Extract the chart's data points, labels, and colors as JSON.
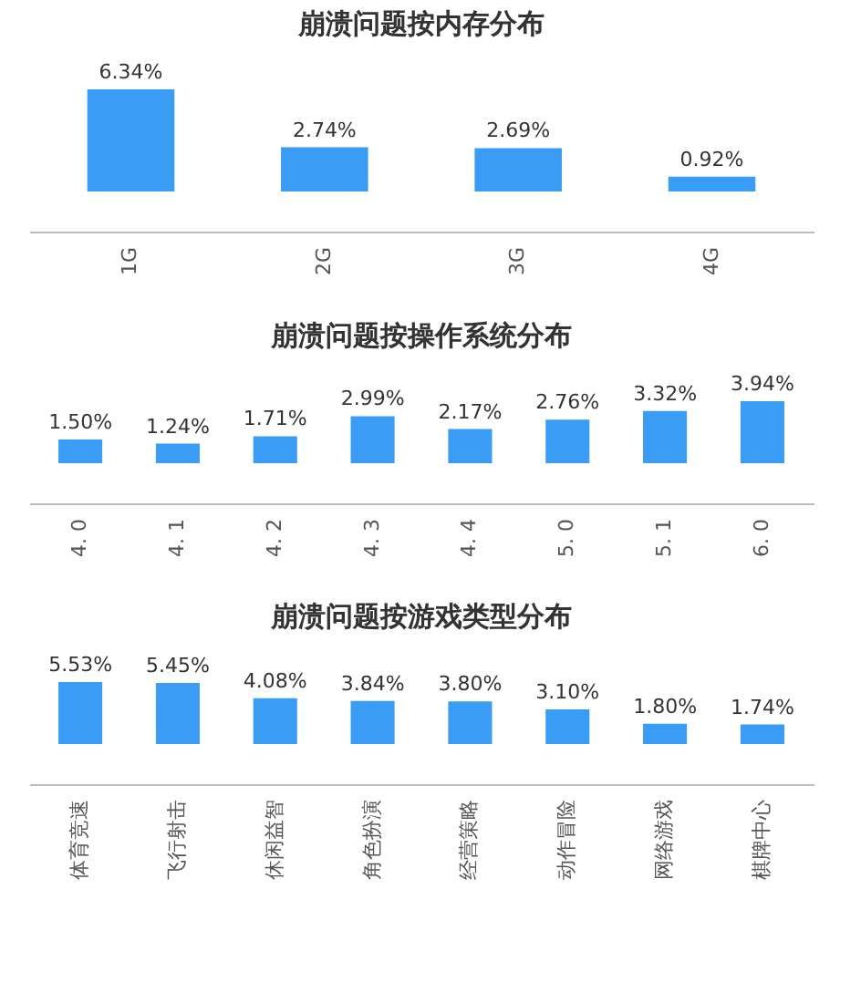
{
  "chart_data": [
    {
      "type": "bar",
      "title": "崩溃问题按内存分布",
      "categories": [
        "1G",
        "2G",
        "3G",
        "4G"
      ],
      "values": [
        6.34,
        2.74,
        2.69,
        0.92
      ],
      "value_labels": [
        "6.34%",
        "2.74%",
        "2.69%",
        "0.92%"
      ],
      "color": "#3a9cf4",
      "tick_labels": "x"
    },
    {
      "type": "bar",
      "title": "崩溃问题按操作系统分布",
      "categories": [
        "4. 0",
        "4. 1",
        "4. 2",
        "4. 3",
        "4. 4",
        "5. 0",
        "5. 1",
        "6. 0"
      ],
      "values": [
        1.5,
        1.24,
        1.71,
        2.99,
        2.17,
        2.76,
        3.32,
        3.94
      ],
      "value_labels": [
        "1.50%",
        "1.24%",
        "1.71%",
        "2.99%",
        "2.17%",
        "2.76%",
        "3.32%",
        "3.94%"
      ],
      "color": "#3a9cf4",
      "tick_labels": "x"
    },
    {
      "type": "bar",
      "title": "崩溃问题按游戏类型分布",
      "categories": [
        "体育竞速",
        "飞行射击",
        "休闲益智",
        "角色扮演",
        "经营策略",
        "动作冒险",
        "网络游戏",
        "棋牌中心"
      ],
      "values": [
        5.53,
        5.45,
        4.08,
        3.84,
        3.8,
        3.1,
        1.8,
        1.74
      ],
      "value_labels": [
        "5.53%",
        "5.45%",
        "4.08%",
        "3.84%",
        "3.80%",
        "3.10%",
        "1.80%",
        "1.74%"
      ],
      "color": "#3a9cf4",
      "tick_labels": "x"
    }
  ]
}
